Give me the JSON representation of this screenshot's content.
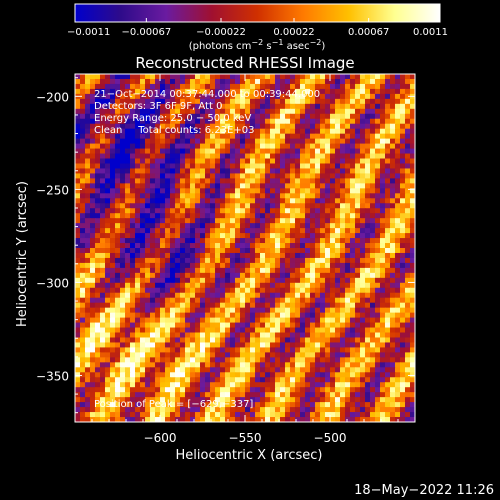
{
  "colorbar": {
    "ticks": [
      "−0.0011",
      "−0.00067",
      "−0.00022",
      "0.00022",
      "0.00067",
      "0.0011"
    ],
    "tick_values": [
      -0.0011,
      -0.00067,
      -0.00022,
      0.00022,
      0.00067,
      0.0011
    ],
    "range": [
      -0.0011,
      0.0011
    ],
    "unit_parts": [
      "(photons cm",
      "−2",
      " s",
      "−1",
      " asec",
      "−2",
      ")"
    ],
    "colors": [
      "#0000cc",
      "#2e0b8a",
      "#6a1ba0",
      "#a01030",
      "#d03000",
      "#ff7a00",
      "#ffc000",
      "#ffff90",
      "#ffffff"
    ]
  },
  "chart_data": {
    "type": "heatmap",
    "title": "Reconstructed RHESSI Image",
    "xlabel": "Heliocentric X (arcsec)",
    "ylabel": "Heliocentric Y (arcsec)",
    "xlim": [
      -650,
      -450
    ],
    "ylim": [
      -375,
      -188
    ],
    "x_ticks": [
      -600,
      -550,
      -500
    ],
    "x_tick_labels": [
      "−600",
      "−550",
      "−500"
    ],
    "y_ticks": [
      -200,
      -250,
      -300,
      -350
    ],
    "y_tick_labels": [
      "−200",
      "−250",
      "−300",
      "−350"
    ],
    "value_range": [
      -0.0011,
      0.0011
    ],
    "peak_position": [
      -629,
      -337
    ],
    "annotations": [
      "21−Oct−2014 00:37:44.000 to 00:39:44.000",
      "Detectors: 3F 6F 9F, Att 0",
      "Energy Range: 25.0 − 50.0 keV",
      "Clean     Total counts: 6.23E+03",
      "Position of Peak = [−629,−337]"
    ]
  },
  "footer": {
    "timestamp": "18−May−2022 11:26"
  }
}
